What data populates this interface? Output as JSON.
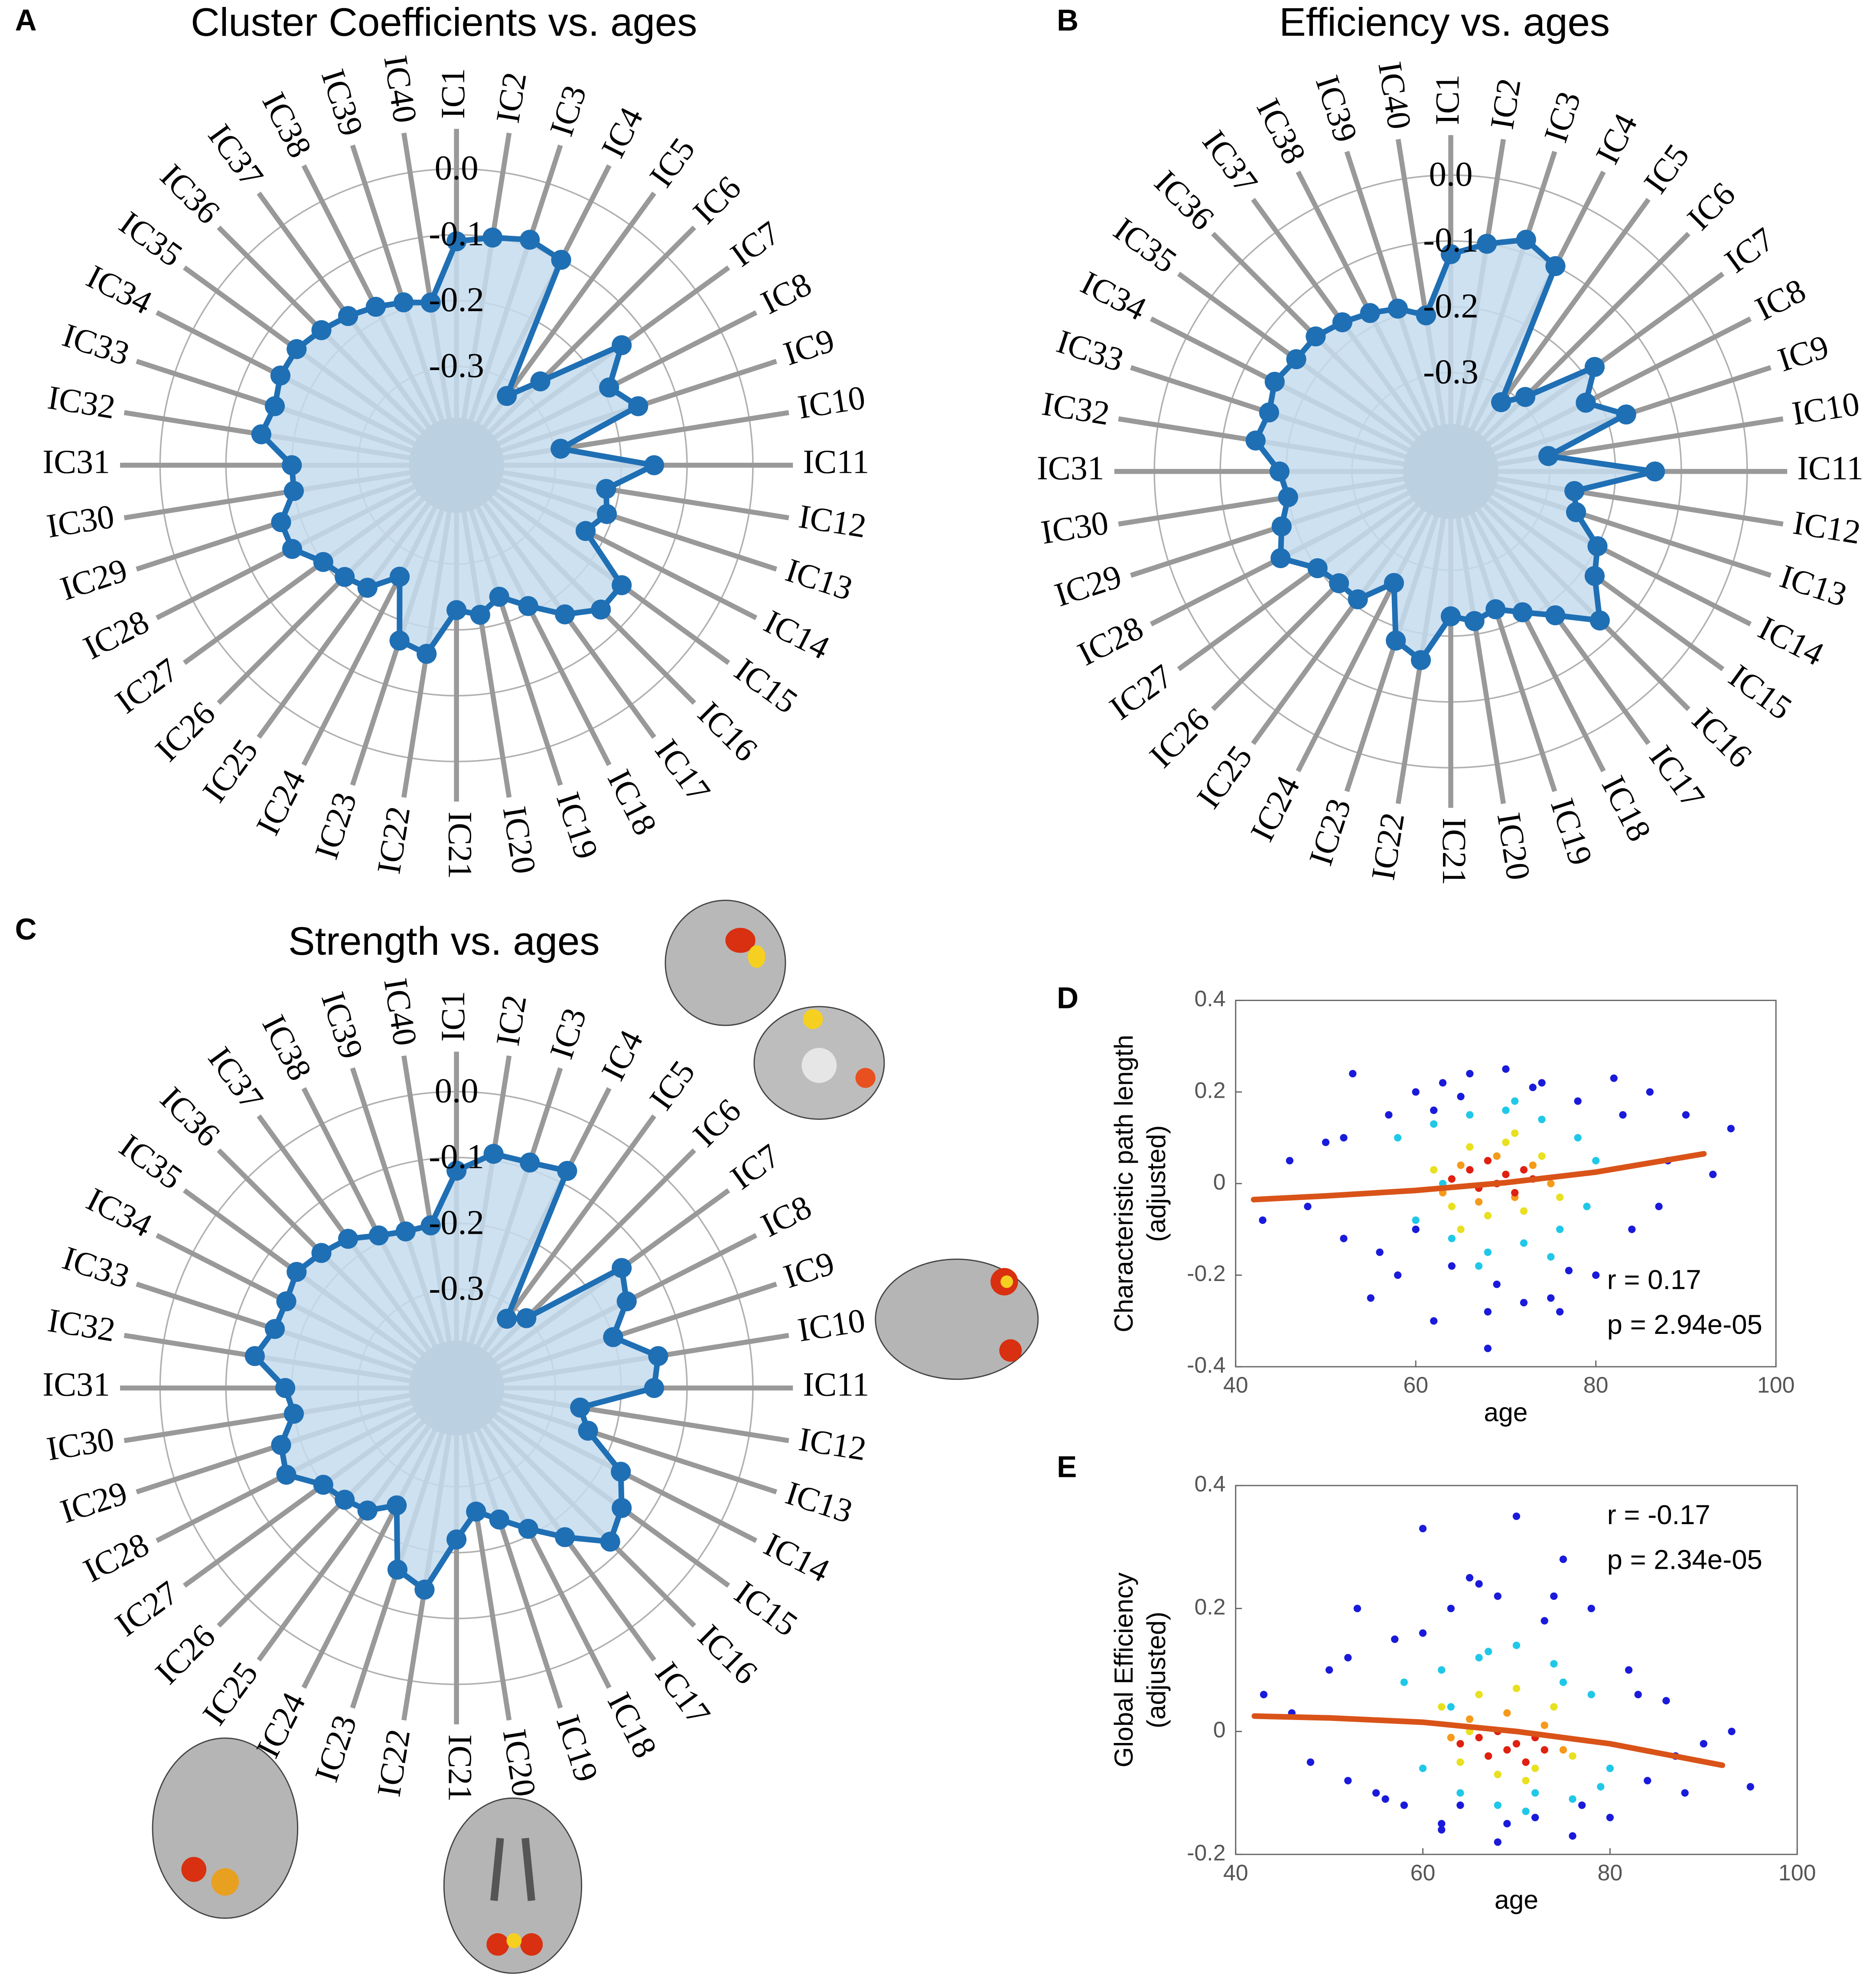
{
  "chart_data": [
    {
      "type": "radar",
      "panel": "A",
      "title": "Cluster Coefficients vs. ages",
      "categories": [
        "IC1",
        "IC2",
        "IC3",
        "IC4",
        "IC5",
        "IC6",
        "IC7",
        "IC8",
        "IC9",
        "IC10",
        "IC11",
        "IC12",
        "IC13",
        "IC14",
        "IC15",
        "IC16",
        "IC17",
        "IC18",
        "IC19",
        "IC20",
        "IC21",
        "IC22",
        "IC23",
        "IC24",
        "IC25",
        "IC26",
        "IC27",
        "IC28",
        "IC29",
        "IC30",
        "IC31",
        "IC32",
        "IC33",
        "IC34",
        "IC35",
        "IC36",
        "IC37",
        "IC38",
        "IC39",
        "IC40"
      ],
      "values": [
        -0.11,
        -0.1,
        -0.09,
        -0.1,
        -0.32,
        -0.27,
        -0.14,
        -0.19,
        -0.16,
        -0.29,
        -0.15,
        -0.22,
        -0.21,
        -0.23,
        -0.14,
        -0.14,
        -0.17,
        -0.21,
        -0.24,
        -0.22,
        -0.23,
        -0.16,
        -0.17,
        -0.26,
        -0.22,
        -0.21,
        -0.2,
        -0.17,
        -0.17,
        -0.2,
        -0.2,
        -0.15,
        -0.16,
        -0.15,
        -0.15,
        -0.16,
        -0.17,
        -0.18,
        -0.19,
        -0.2
      ],
      "color": "#1f6fb4",
      "fill": "#c6dcee",
      "rlim": [
        -0.45,
        0
      ],
      "rticks": [
        {
          "value": 0,
          "label": "0.0"
        },
        -0.1,
        -0.2,
        -0.3
      ]
    },
    {
      "type": "radar",
      "panel": "B",
      "title": "Efficiency vs. ages",
      "categories": [
        "IC1",
        "IC2",
        "IC3",
        "IC4",
        "IC5",
        "IC6",
        "IC7",
        "IC8",
        "IC9",
        "IC10",
        "IC11",
        "IC12",
        "IC13",
        "IC14",
        "IC15",
        "IC16",
        "IC17",
        "IC18",
        "IC19",
        "IC20",
        "IC21",
        "IC22",
        "IC23",
        "IC24",
        "IC25",
        "IC26",
        "IC27",
        "IC28",
        "IC29",
        "IC30",
        "IC31",
        "IC32",
        "IC33",
        "IC34",
        "IC35",
        "IC36",
        "IC37",
        "IC38",
        "IC39",
        "IC40"
      ],
      "values": [
        -0.12,
        -0.1,
        -0.08,
        -0.1,
        -0.32,
        -0.29,
        -0.18,
        -0.22,
        -0.17,
        -0.3,
        -0.14,
        -0.26,
        -0.25,
        -0.2,
        -0.18,
        -0.13,
        -0.18,
        -0.21,
        -0.23,
        -0.22,
        -0.23,
        -0.16,
        -0.18,
        -0.26,
        -0.21,
        -0.21,
        -0.2,
        -0.16,
        -0.18,
        -0.2,
        -0.19,
        -0.15,
        -0.16,
        -0.15,
        -0.16,
        -0.16,
        -0.17,
        -0.18,
        -0.19,
        -0.21
      ],
      "color": "#1f6fb4",
      "fill": "#c6dcee",
      "rlim": [
        -0.45,
        0
      ],
      "rticks": [
        {
          "value": 0,
          "label": "0.0"
        },
        -0.1,
        -0.2,
        -0.3
      ]
    },
    {
      "type": "radar",
      "panel": "C",
      "title": "Strength vs. ages",
      "categories": [
        "IC1",
        "IC2",
        "IC3",
        "IC4",
        "IC5",
        "IC6",
        "IC7",
        "IC8",
        "IC9",
        "IC10",
        "IC11",
        "IC12",
        "IC13",
        "IC14",
        "IC15",
        "IC16",
        "IC17",
        "IC18",
        "IC19",
        "IC20",
        "IC21",
        "IC22",
        "IC23",
        "IC24",
        "IC25",
        "IC26",
        "IC27",
        "IC28",
        "IC29",
        "IC30",
        "IC31",
        "IC32",
        "IC33",
        "IC34",
        "IC35",
        "IC36",
        "IC37",
        "IC38",
        "IC39",
        "IC40"
      ],
      "values": [
        -0.12,
        -0.09,
        -0.09,
        -0.08,
        -0.32,
        -0.3,
        -0.14,
        -0.16,
        -0.2,
        -0.14,
        -0.15,
        -0.26,
        -0.24,
        -0.17,
        -0.14,
        -0.12,
        -0.17,
        -0.21,
        -0.24,
        -0.26,
        -0.22,
        -0.14,
        -0.16,
        -0.25,
        -0.22,
        -0.21,
        -0.2,
        -0.16,
        -0.17,
        -0.2,
        -0.19,
        -0.14,
        -0.16,
        -0.16,
        -0.15,
        -0.16,
        -0.17,
        -0.19,
        -0.2,
        -0.2
      ],
      "color": "#1f6fb4",
      "fill": "#c6dcee",
      "rlim": [
        -0.45,
        0
      ],
      "rticks": [
        {
          "value": 0,
          "label": "0.0"
        },
        -0.1,
        -0.2,
        -0.3
      ]
    },
    {
      "type": "scatter",
      "panel": "D",
      "xlabel": "age",
      "ylabel": [
        "Characteristic path length",
        "(adjusted)"
      ],
      "xlim": [
        40,
        100
      ],
      "xticks": [
        40,
        60,
        80,
        100
      ],
      "ylim": [
        -0.4,
        0.4
      ],
      "yticks": [
        -0.4,
        -0.2,
        0,
        0.2,
        0.4
      ],
      "annotations": [
        "r =  0.17",
        "p = 2.94e-05"
      ],
      "series": [
        {
          "type": "scatter",
          "color": "#1a1adb",
          "x": [
            43,
            46,
            48,
            50,
            52,
            53,
            55,
            57,
            58,
            60,
            62,
            63,
            64,
            66,
            68,
            70,
            72,
            74,
            76,
            78,
            80,
            82,
            84,
            86,
            88,
            90,
            93,
            95,
            52,
            56,
            60,
            65,
            69,
            73,
            77,
            83,
            87,
            62,
            75,
            68
          ],
          "values": [
            -0.08,
            0.05,
            -0.05,
            0.09,
            -0.12,
            0.24,
            -0.25,
            0.15,
            -0.2,
            0.2,
            -0.3,
            0.22,
            -0.18,
            0.24,
            -0.36,
            0.25,
            -0.26,
            0.22,
            -0.28,
            0.18,
            -0.2,
            0.23,
            -0.1,
            0.2,
            0.05,
            0.15,
            0.02,
            0.12,
            0.1,
            -0.15,
            -0.1,
            0.19,
            -0.22,
            0.21,
            -0.19,
            0.15,
            -0.05,
            0.16,
            -0.25,
            -0.28
          ]
        },
        {
          "type": "scatter",
          "color": "#20c8e8",
          "x": [
            58,
            60,
            62,
            64,
            66,
            68,
            70,
            72,
            74,
            76,
            78,
            80,
            63,
            67,
            71,
            75,
            79
          ],
          "values": [
            0.1,
            -0.08,
            0.13,
            -0.12,
            0.15,
            -0.15,
            0.16,
            -0.13,
            0.14,
            -0.1,
            0.1,
            0.05,
            0.0,
            -0.18,
            0.18,
            -0.16,
            -0.05
          ]
        },
        {
          "type": "scatter",
          "color": "#e8e020",
          "x": [
            62,
            64,
            66,
            68,
            70,
            72,
            74,
            76,
            65,
            71
          ],
          "values": [
            0.03,
            -0.05,
            0.08,
            -0.07,
            0.09,
            -0.06,
            0.06,
            -0.03,
            -0.1,
            0.11
          ]
        },
        {
          "type": "scatter",
          "color": "#f59a1a",
          "x": [
            63,
            65,
            67,
            69,
            71,
            73,
            75
          ],
          "values": [
            -0.02,
            0.04,
            -0.04,
            0.06,
            -0.03,
            0.04,
            0.0
          ]
        },
        {
          "type": "scatter",
          "color": "#e02010",
          "x": [
            64,
            66,
            67,
            68,
            69,
            70,
            71,
            72,
            73
          ],
          "values": [
            0.01,
            0.03,
            -0.01,
            0.05,
            0.0,
            0.02,
            -0.02,
            0.03,
            0.01
          ]
        },
        {
          "type": "line",
          "color": "#d95319",
          "x": [
            42,
            50,
            60,
            70,
            80,
            92
          ],
          "values": [
            -0.035,
            -0.027,
            -0.015,
            0.002,
            0.025,
            0.065
          ]
        }
      ]
    },
    {
      "type": "scatter",
      "panel": "E",
      "xlabel": "age",
      "ylabel": [
        "Global Efficiency",
        "(adjusted)"
      ],
      "xlim": [
        40,
        100
      ],
      "xticks": [
        40,
        60,
        80,
        100
      ],
      "ylim": [
        -0.2,
        0.4
      ],
      "yticks": [
        -0.2,
        0,
        0.2,
        0.4
      ],
      "annotations": [
        "r = -0.17",
        "p = 2.34e-05"
      ],
      "series": [
        {
          "type": "scatter",
          "color": "#1a1adb",
          "x": [
            43,
            46,
            48,
            50,
            52,
            53,
            55,
            57,
            58,
            60,
            62,
            63,
            64,
            66,
            68,
            70,
            72,
            74,
            76,
            78,
            80,
            82,
            84,
            86,
            88,
            90,
            93,
            95,
            52,
            56,
            60,
            65,
            69,
            73,
            77,
            83,
            87,
            62,
            75,
            68
          ],
          "values": [
            0.06,
            0.03,
            -0.05,
            0.1,
            -0.08,
            0.2,
            -0.1,
            0.15,
            -0.12,
            0.33,
            -0.15,
            0.2,
            -0.12,
            0.24,
            -0.18,
            0.35,
            -0.14,
            0.22,
            -0.17,
            0.2,
            -0.14,
            0.1,
            -0.08,
            0.05,
            -0.1,
            -0.02,
            0.0,
            -0.09,
            0.12,
            -0.11,
            0.16,
            0.25,
            -0.15,
            0.18,
            -0.12,
            0.06,
            -0.04,
            -0.16,
            0.28,
            0.22
          ]
        },
        {
          "type": "scatter",
          "color": "#20c8e8",
          "x": [
            58,
            60,
            62,
            64,
            66,
            68,
            70,
            72,
            74,
            76,
            78,
            80,
            63,
            67,
            71,
            75,
            79
          ],
          "values": [
            0.08,
            -0.06,
            0.1,
            -0.1,
            0.12,
            -0.12,
            0.14,
            -0.1,
            0.11,
            -0.11,
            0.06,
            -0.06,
            0.04,
            0.13,
            -0.13,
            0.08,
            -0.09
          ]
        },
        {
          "type": "scatter",
          "color": "#e8e020",
          "x": [
            62,
            64,
            66,
            68,
            70,
            72,
            74,
            76,
            65,
            71
          ],
          "values": [
            0.04,
            -0.05,
            0.06,
            -0.07,
            0.07,
            -0.06,
            0.04,
            -0.04,
            0.0,
            -0.08
          ]
        },
        {
          "type": "scatter",
          "color": "#f59a1a",
          "x": [
            63,
            65,
            67,
            69,
            71,
            73,
            75
          ],
          "values": [
            -0.01,
            0.02,
            -0.04,
            0.03,
            -0.05,
            0.01,
            -0.03
          ]
        },
        {
          "type": "scatter",
          "color": "#e02010",
          "x": [
            64,
            66,
            67,
            68,
            69,
            70,
            71,
            72,
            73
          ],
          "values": [
            -0.02,
            -0.01,
            -0.04,
            0.0,
            -0.03,
            -0.02,
            -0.05,
            -0.01,
            -0.03
          ]
        },
        {
          "type": "line",
          "color": "#d95319",
          "x": [
            42,
            50,
            60,
            70,
            80,
            92
          ],
          "values": [
            0.025,
            0.022,
            0.015,
            0.0,
            -0.02,
            -0.055
          ]
        }
      ]
    }
  ]
}
